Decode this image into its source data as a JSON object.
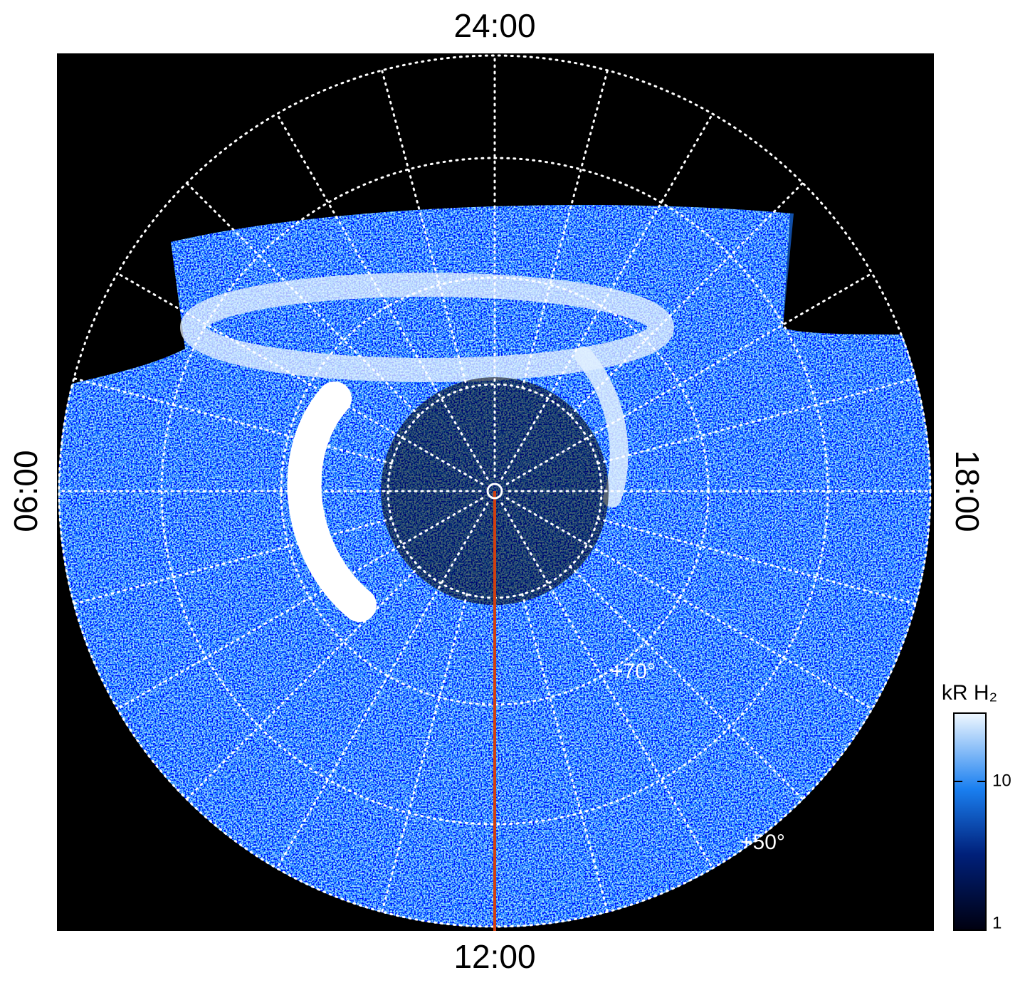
{
  "hour_labels": {
    "top": "24:00",
    "bottom": "12:00",
    "left": "06:00",
    "right": "18:00"
  },
  "latitude_labels": [
    "+70°",
    "+50°"
  ],
  "colorbar": {
    "title": "kR H₂",
    "ticks": [
      "10",
      "1"
    ]
  }
}
